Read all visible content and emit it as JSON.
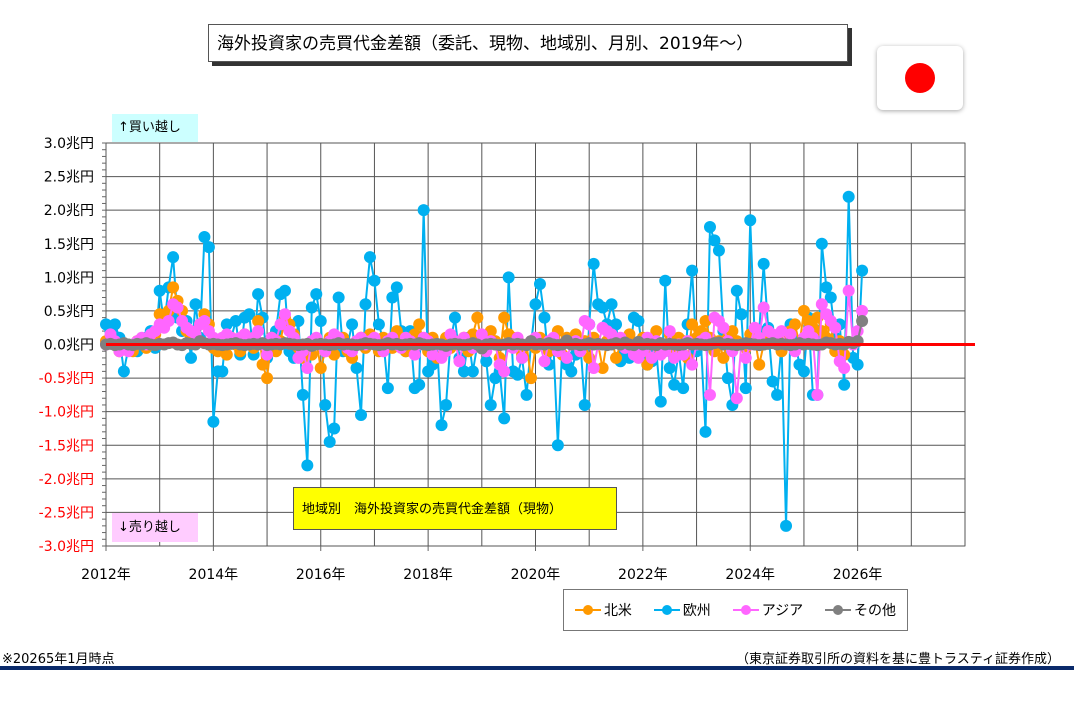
{
  "header": {
    "title": "海外投資家の売買代金差額（委託、現物、地域別、月別、2019年～）",
    "flag_icon": "japan-flag-icon"
  },
  "annotations": {
    "buy": "↑買い越し",
    "sell": "↓売り越し",
    "chart_caption": "地域別　海外投資家の売買代金差額（現物）"
  },
  "footer": {
    "note": "※20265年1月時点",
    "source": "（東京証券取引所の資料を基に豊トラスティ証券作成）"
  },
  "colors": {
    "north_america": "#ff9900",
    "europe": "#00b0f0",
    "asia": "#ff66ff",
    "other": "#808080",
    "zero_line": "#ff0000",
    "negative_tick_label": "#ff0000",
    "buy_bg": "#ccffff",
    "sell_bg": "#ffccff",
    "caption_bg": "#ffff00"
  },
  "chart_data": {
    "type": "line",
    "title": "地域別　海外投資家の売買代金差額（現物）",
    "xlabel": "",
    "ylabel": "",
    "x_unit": "month",
    "x_start": "2012-01",
    "x_end": "2026-01",
    "xlim": [
      2012,
      2028
    ],
    "ylim": [
      -3.0,
      3.0
    ],
    "grid": true,
    "legend_position": "bottom-right",
    "x_ticks": [
      "2012年",
      "2014年",
      "2016年",
      "2018年",
      "2020年",
      "2022年",
      "2024年",
      "2026年"
    ],
    "y_ticks": [
      {
        "value": 3.0,
        "label": "3.0兆円"
      },
      {
        "value": 2.5,
        "label": "2.5兆円"
      },
      {
        "value": 2.0,
        "label": "2.0兆円"
      },
      {
        "value": 1.5,
        "label": "1.5兆円"
      },
      {
        "value": 1.0,
        "label": "1.0兆円"
      },
      {
        "value": 0.5,
        "label": "0.5兆円"
      },
      {
        "value": 0.0,
        "label": "0.0兆円"
      },
      {
        "value": -0.5,
        "label": "-0.5兆円"
      },
      {
        "value": -1.0,
        "label": "-1.0兆円"
      },
      {
        "value": -1.5,
        "label": "-1.5兆円"
      },
      {
        "value": -2.0,
        "label": "-2.0兆円"
      },
      {
        "value": -2.5,
        "label": "-2.5兆円"
      },
      {
        "value": -3.0,
        "label": "-3.0兆円"
      }
    ],
    "reference_line": 0.0,
    "series": [
      {
        "name": "北米",
        "color": "#ff9900",
        "values": [
          0.05,
          0.1,
          0.0,
          -0.1,
          -0.05,
          0.0,
          -0.1,
          0.05,
          0.0,
          -0.05,
          0.1,
          0.15,
          0.45,
          0.3,
          0.5,
          0.85,
          0.65,
          0.5,
          0.2,
          0.1,
          0.15,
          0.3,
          0.45,
          0.3,
          -0.05,
          -0.1,
          0.05,
          -0.15,
          0.1,
          0.0,
          -0.1,
          0.15,
          0.05,
          -0.05,
          0.35,
          -0.3,
          -0.5,
          0.1,
          -0.1,
          0.05,
          0.4,
          0.3,
          0.15,
          -0.05,
          -0.2,
          0.0,
          -0.15,
          0.05,
          -0.35,
          -0.1,
          0.1,
          -0.15,
          0.05,
          0.1,
          -0.1,
          -0.2,
          0.0,
          0.1,
          -0.05,
          0.15,
          0.05,
          -0.1,
          0.1,
          0.0,
          -0.05,
          0.2,
          0.1,
          -0.1,
          0.0,
          0.15,
          0.3,
          0.0,
          -0.1,
          0.1,
          -0.2,
          0.0,
          0.1,
          -0.05,
          0.05,
          0.0,
          0.1,
          -0.1,
          0.15,
          0.4,
          0.0,
          -0.05,
          0.2,
          0.05,
          -0.2,
          0.4,
          0.15,
          0.1,
          0.05,
          -0.15,
          0.0,
          -0.5,
          -0.05,
          0.1,
          0.0,
          -0.1,
          0.05,
          0.2,
          -0.15,
          0.1,
          0.0,
          0.15,
          -0.1,
          0.05,
          -0.2,
          0.1,
          0.0,
          -0.35,
          0.05,
          0.1,
          -0.2,
          0.0,
          0.05,
          0.15,
          -0.1,
          0.0,
          0.1,
          -0.3,
          0.05,
          0.2,
          -0.1,
          0.0,
          0.15,
          -0.05,
          0.1,
          0.05,
          -0.2,
          0.3,
          0.1,
          0.2,
          0.35,
          0.1,
          -0.1,
          0.05,
          -0.2,
          0.1,
          0.2,
          0.05,
          0.0,
          -0.05,
          0.15,
          0.1,
          -0.3,
          0.0,
          0.2,
          0.1,
          0.05,
          -0.1,
          0.15,
          0.2,
          0.3,
          0.0,
          0.5,
          0.35,
          0.25,
          0.4,
          0.2,
          0.1,
          0.3,
          -0.1,
          0.05,
          -0.15
        ]
      },
      {
        "name": "欧州",
        "color": "#00b0f0",
        "values": [
          0.3,
          0.2,
          0.3,
          0.1,
          -0.4,
          -0.05,
          0.0,
          -0.1,
          0.05,
          0.1,
          0.2,
          -0.05,
          0.8,
          0.3,
          0.85,
          1.3,
          0.4,
          0.2,
          0.35,
          -0.2,
          0.6,
          0.1,
          1.6,
          1.45,
          -1.15,
          -0.4,
          -0.4,
          0.3,
          0.1,
          0.35,
          -0.15,
          0.4,
          0.45,
          -0.15,
          0.75,
          0.4,
          -0.2,
          0.1,
          0.2,
          0.75,
          0.8,
          -0.1,
          -0.2,
          0.35,
          -0.75,
          -1.8,
          0.55,
          0.75,
          0.35,
          -0.9,
          -1.45,
          -1.25,
          0.7,
          -0.1,
          0.0,
          0.3,
          -0.35,
          -1.05,
          0.6,
          1.3,
          0.95,
          0.3,
          0.05,
          -0.65,
          0.7,
          0.85,
          0.2,
          -0.1,
          0.2,
          -0.65,
          -0.6,
          2.0,
          -0.4,
          -0.3,
          0.0,
          -1.2,
          -0.9,
          0.05,
          0.4,
          -0.2,
          -0.4,
          0.1,
          -0.4,
          0.0,
          0.05,
          -0.25,
          -0.9,
          -0.5,
          -0.4,
          -1.1,
          1.0,
          -0.4,
          -0.45,
          -0.2,
          -0.75,
          0.0,
          0.6,
          0.9,
          0.4,
          -0.3,
          0.0,
          -1.5,
          0.0,
          -0.3,
          -0.4,
          -0.15,
          0.05,
          -0.9,
          0.3,
          1.2,
          0.6,
          0.55,
          0.3,
          0.6,
          0.3,
          -0.25,
          -0.15,
          -0.2,
          0.4,
          0.35,
          -0.1,
          -0.3,
          -0.25,
          -0.1,
          -0.85,
          0.95,
          -0.35,
          -0.6,
          -0.1,
          -0.65,
          0.3,
          1.1,
          -0.1,
          0.0,
          -1.3,
          1.75,
          1.55,
          1.4,
          0.2,
          -0.5,
          -0.9,
          0.8,
          0.45,
          -0.65,
          1.85,
          0.1,
          0.2,
          1.2,
          0.25,
          -0.55,
          -0.75,
          0.0,
          -2.7,
          0.3,
          0.05,
          -0.3,
          -0.4,
          0.4,
          -0.75,
          -0.75,
          1.5,
          0.85,
          0.7,
          0.1,
          0.3,
          -0.6,
          2.2,
          -0.2,
          -0.3,
          1.1
        ]
      },
      {
        "name": "アジア",
        "color": "#ff66ff",
        "values": [
          0.0,
          0.15,
          0.05,
          -0.1,
          0.0,
          -0.1,
          0.0,
          0.05,
          0.1,
          0.0,
          0.15,
          0.2,
          0.3,
          0.25,
          0.35,
          0.6,
          0.55,
          0.35,
          0.25,
          0.2,
          0.15,
          0.3,
          0.35,
          0.2,
          0.1,
          0.05,
          0.1,
          0.15,
          0.1,
          0.05,
          0.1,
          0.15,
          0.05,
          0.1,
          0.2,
          0.0,
          -0.15,
          0.1,
          0.05,
          0.3,
          0.45,
          0.2,
          0.1,
          -0.2,
          -0.1,
          -0.35,
          0.05,
          0.1,
          0.0,
          -0.1,
          0.05,
          0.15,
          0.1,
          0.0,
          -0.05,
          -0.1,
          0.05,
          0.1,
          0.0,
          0.05,
          0.1,
          0.0,
          -0.1,
          0.05,
          0.1,
          0.0,
          -0.05,
          0.1,
          0.05,
          -0.15,
          0.0,
          0.1,
          0.05,
          -0.15,
          0.0,
          -0.2,
          -0.1,
          0.15,
          0.05,
          -0.25,
          0.1,
          0.0,
          -0.05,
          0.0,
          0.15,
          -0.1,
          0.05,
          0.0,
          -0.3,
          -0.4,
          0.0,
          -0.05,
          0.1,
          -0.2,
          0.0,
          0.05,
          0.1,
          0.0,
          -0.25,
          0.05,
          0.1,
          -0.1,
          0.0,
          -0.2,
          0.0,
          0.05,
          -0.1,
          0.35,
          0.3,
          -0.35,
          0.0,
          0.25,
          0.2,
          0.15,
          0.05,
          0.1,
          -0.05,
          0.0,
          -0.15,
          -0.2,
          -0.1,
          0.1,
          -0.2,
          0.05,
          -0.15,
          -0.1,
          0.2,
          -0.2,
          0.0,
          -0.15,
          0.05,
          -0.3,
          0.0,
          0.05,
          0.1,
          -0.75,
          0.4,
          0.35,
          0.25,
          0.05,
          -0.1,
          -0.8,
          0.0,
          -0.2,
          0.0,
          0.25,
          0.1,
          0.55,
          0.2,
          0.15,
          0.05,
          0.2,
          0.0,
          0.15,
          -0.1,
          0.0,
          0.1,
          0.2,
          0.1,
          -0.75,
          0.6,
          0.45,
          0.35,
          0.25,
          -0.25,
          -0.35,
          0.8,
          0.0,
          0.2,
          0.5
        ]
      },
      {
        "name": "その他",
        "color": "#808080",
        "values": [
          0.0,
          0.01,
          -0.01,
          0.0,
          0.02,
          0.0,
          -0.01,
          0.01,
          0.0,
          0.02,
          0.0,
          -0.01,
          0.01,
          0.0,
          0.02,
          0.03,
          0.0,
          -0.01,
          0.02,
          0.01,
          0.0,
          0.05,
          0.02,
          0.0,
          0.01,
          0.0,
          -0.01,
          0.0,
          0.01,
          0.02,
          0.0,
          -0.01,
          0.0,
          0.01,
          0.0,
          0.02,
          -0.01,
          0.0,
          0.01,
          0.0,
          0.02,
          0.01,
          0.0,
          -0.01,
          0.0,
          0.01,
          -0.02,
          0.0,
          0.01,
          0.0,
          -0.01,
          0.0,
          0.02,
          0.0,
          0.01,
          0.0,
          -0.01,
          0.0,
          0.02,
          0.01,
          0.0,
          -0.01,
          0.0,
          0.02,
          0.0,
          0.01,
          -0.01,
          0.0,
          0.01,
          0.0,
          0.02,
          0.0,
          -0.01,
          0.0,
          0.01,
          0.0,
          -0.02,
          0.0,
          0.01,
          0.0,
          -0.01,
          0.0,
          0.02,
          0.0,
          -0.06,
          0.0,
          0.01,
          0.0,
          -0.01,
          0.0,
          0.02,
          0.0,
          0.01,
          0.0,
          -0.01,
          0.05,
          0.0,
          0.01,
          0.0,
          0.02,
          0.0,
          -0.01,
          0.0,
          0.06,
          0.0,
          0.01,
          -0.01,
          0.0,
          0.02,
          0.0,
          0.01,
          0.0,
          -0.01,
          0.0,
          0.02,
          0.0,
          0.03,
          0.0,
          -0.01,
          0.04,
          0.0,
          0.01,
          0.0,
          -0.01,
          0.02,
          0.0,
          0.01,
          0.0,
          -0.01,
          0.0,
          0.02,
          0.0,
          0.01,
          0.0,
          -0.01,
          0.0,
          0.02,
          0.03,
          0.0,
          0.01,
          0.0,
          -0.01,
          0.0,
          0.02,
          0.01,
          0.0,
          -0.01,
          0.0,
          0.01,
          0.02,
          0.0,
          0.01,
          0.0,
          -0.01,
          0.0,
          0.02,
          0.0,
          0.01,
          0.0,
          -0.01,
          0.0,
          0.03,
          0.02,
          0.0,
          0.01,
          0.0,
          0.04,
          0.02,
          0.05,
          0.35
        ]
      }
    ]
  },
  "legend": {
    "items": [
      "北米",
      "欧州",
      "アジア",
      "その他"
    ]
  }
}
